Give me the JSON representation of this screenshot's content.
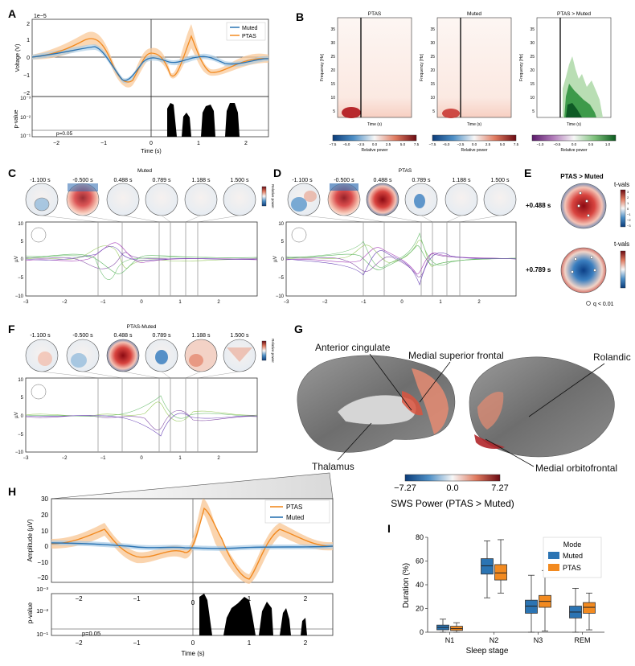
{
  "panel_letters": [
    "A",
    "B",
    "C",
    "D",
    "E",
    "F",
    "G",
    "H",
    "I"
  ],
  "colors": {
    "muted": "#2b74b3",
    "ptas": "#f28a20",
    "ptas_fill": "#f9c99a",
    "muted_fill": "#a8cbe5",
    "pval_fill": "#000000"
  },
  "panelA": {
    "scale": "1e−5",
    "ylabel": "Voltage (V)",
    "yticks": [
      "2",
      "1",
      "0",
      "−1",
      "−2"
    ],
    "legend": [
      "Muted",
      "PTAS"
    ],
    "pval_ylabel": "p-value",
    "pval_ticks": [
      "10⁻³",
      "10⁻²",
      "10⁻¹"
    ],
    "alpha_label": "p=0.05",
    "xticks": [
      "−2",
      "−1",
      "0",
      "1",
      "2"
    ],
    "xlabel": "Time (s)"
  },
  "panelB": {
    "titles": [
      "PTAS",
      "Muted",
      "PTAS > Muted"
    ],
    "ylabel": "Frequency [Hz]",
    "yticks": [
      "35",
      "30",
      "25",
      "20",
      "15",
      "10",
      "5"
    ],
    "xlabel": "Time (s)",
    "cb1_ticks": [
      "−7.5",
      "−5.0",
      "−2.5",
      "0.0",
      "2.5",
      "5.0",
      "7.5"
    ],
    "cb2_ticks": [
      "−1.0",
      "−0.5",
      "0.0",
      "0.5",
      "1.0"
    ],
    "cb_label": "Relative power"
  },
  "topo_times": [
    "-1.100 s",
    "-0.500 s",
    "0.488 s",
    "0.789 s",
    "1.188 s",
    "1.500 s"
  ],
  "panelC": {
    "title": "Muted",
    "cb_label": "Relative power",
    "ylabel": "µV"
  },
  "panelD": {
    "title": "PTAS",
    "ylabel": "µV"
  },
  "panelF": {
    "title": "PTAS-Muted",
    "cb_label": "Relative power",
    "ylabel": "µV"
  },
  "erp_yticks": [
    "10",
    "5",
    "0",
    "−5",
    "−10"
  ],
  "erp_xticks": [
    "−3",
    "−2",
    "−1",
    "0",
    "1",
    "2"
  ],
  "panelE": {
    "title": "PTAS > Muted",
    "times": [
      "+0.488 s",
      "+0.789 s"
    ],
    "tvals": "t-vals",
    "cb_ticks_top": [
      "3",
      "2",
      "1",
      "0",
      "−1",
      "−2",
      "−3"
    ],
    "legend": "q < 0.01"
  },
  "panelG": {
    "labels": [
      "Anterior cingulate",
      "Medial superior frontal",
      "Rolandic",
      "Thalamus",
      "Medial orbitofrontal"
    ],
    "cb_ticks": [
      "−7.27",
      "0.0",
      "7.27"
    ],
    "cb_title": "SWS Power (PTAS > Muted)"
  },
  "panelH": {
    "ylabel": "Amplitude (µV)",
    "yticks": [
      "30",
      "20",
      "10",
      "0",
      "−10",
      "−20"
    ],
    "legend": [
      "PTAS",
      "Muted"
    ],
    "pval_ylabel": "p-value",
    "pval_ticks": [
      "10⁻³",
      "10⁻²",
      "10⁻¹"
    ],
    "alpha_label": "p=0.05",
    "xticks": [
      "−2",
      "−1",
      "0",
      "1",
      "2"
    ],
    "xlabel": "Time (s)"
  },
  "chart_data": [
    {
      "type": "box",
      "title": "",
      "xlabel": "Sleep stage",
      "ylabel": "Duration (%)",
      "ylim": [
        0,
        80
      ],
      "yticks": [
        "0",
        "20",
        "40",
        "60",
        "80"
      ],
      "categories": [
        "N1",
        "N2",
        "N3",
        "REM"
      ],
      "legend_title": "Mode",
      "series": [
        {
          "name": "Muted",
          "boxes": [
            {
              "min": 0,
              "q1": 2,
              "median": 4,
              "q3": 6,
              "max": 11
            },
            {
              "min": 29,
              "q1": 49,
              "median": 56,
              "q3": 62,
              "max": 77
            },
            {
              "min": 0,
              "q1": 16,
              "median": 22,
              "q3": 27,
              "max": 48
            },
            {
              "min": 0,
              "q1": 12,
              "median": 17,
              "q3": 22,
              "max": 37
            }
          ]
        },
        {
          "name": "PTAS",
          "boxes": [
            {
              "min": 0,
              "q1": 1.5,
              "median": 3,
              "q3": 5,
              "max": 8
            },
            {
              "min": 33,
              "q1": 44,
              "median": 50,
              "q3": 57,
              "max": 78
            },
            {
              "min": 1,
              "q1": 21,
              "median": 26,
              "q3": 31,
              "max": 52
            },
            {
              "min": 2,
              "q1": 16,
              "median": 21,
              "q3": 25,
              "max": 33
            }
          ]
        }
      ]
    }
  ]
}
